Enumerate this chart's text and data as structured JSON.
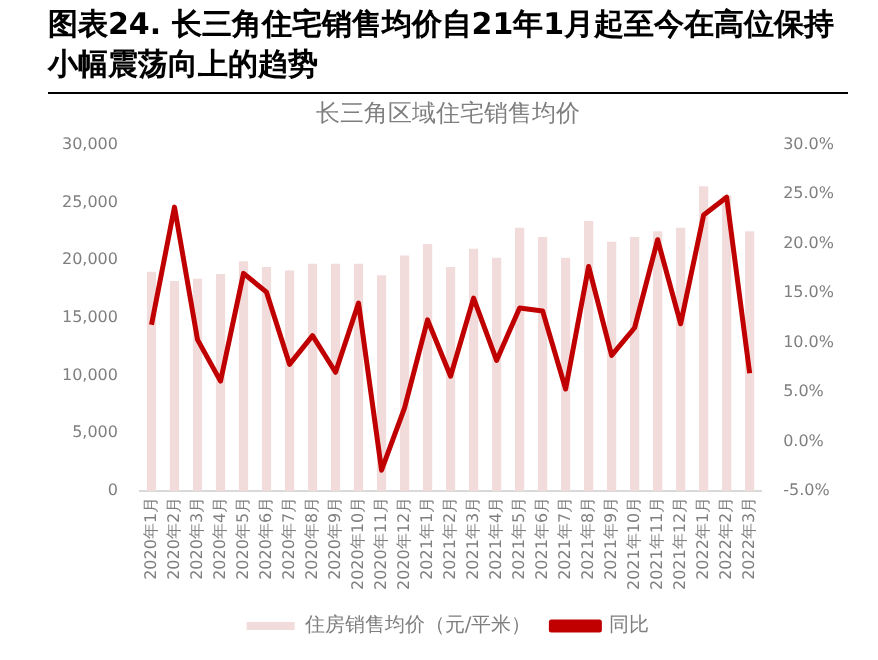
{
  "chart_data": {
    "type": "bar",
    "title": "长三角区域住宅销售均价",
    "subtitle": "图表24. 长三角住宅销售均价自21年1月起至今在高位保持小幅震荡向上的趋势",
    "categories": [
      "2020年1月",
      "2020年2月",
      "2020年3月",
      "2020年4月",
      "2020年5月",
      "2020年6月",
      "2020年7月",
      "2020年8月",
      "2020年9月",
      "2020年10月",
      "2020年11月",
      "2020年12月",
      "2021年1月",
      "2021年2月",
      "2021年3月",
      "2021年4月",
      "2021年5月",
      "2021年6月",
      "2021年7月",
      "2021年8月",
      "2021年9月",
      "2021年10月",
      "2021年11月",
      "2021年12月",
      "2022年1月",
      "2022年2月",
      "2022年3月"
    ],
    "series": [
      {
        "name": "住房销售均价（元/平米）",
        "color": "#f2dcdb",
        "values": [
          19000,
          18200,
          18400,
          18800,
          19900,
          19400,
          19100,
          19700,
          19700,
          19700,
          18700,
          20400,
          21400,
          19400,
          21000,
          20200,
          22800,
          22000,
          20200,
          23400,
          21600,
          22000,
          22500,
          22800,
          26400,
          25600,
          22500
        ]
      },
      {
        "name": "同比",
        "type": "line",
        "axis": "y2",
        "color": "#c00000",
        "values": [
          11.8,
          23.7,
          10.3,
          6.1,
          17.0,
          15.1,
          7.8,
          10.7,
          7.0,
          14.0,
          -2.9,
          3.4,
          12.3,
          6.6,
          14.5,
          8.2,
          13.5,
          13.2,
          5.3,
          17.7,
          8.7,
          11.5,
          20.4,
          11.9,
          22.9,
          24.7,
          6.9
        ]
      }
    ],
    "ylim": [
      0,
      30000
    ],
    "yticks": [
      {
        "value": 0,
        "label": "0"
      },
      {
        "value": 5000,
        "label": "5,000"
      },
      {
        "value": 10000,
        "label": "10,000"
      },
      {
        "value": 15000,
        "label": "15,000"
      },
      {
        "value": 20000,
        "label": "20,000"
      },
      {
        "value": 25000,
        "label": "25,000"
      },
      {
        "value": 30000,
        "label": "30,000"
      }
    ],
    "y2lim": [
      -5,
      30
    ],
    "y2ticks": [
      {
        "value": -5,
        "label": "-5.0%"
      },
      {
        "value": 0,
        "label": "0.0%"
      },
      {
        "value": 5,
        "label": "5.0%"
      },
      {
        "value": 10,
        "label": "10.0%"
      },
      {
        "value": 15,
        "label": "15.0%"
      },
      {
        "value": 20,
        "label": "20.0%"
      },
      {
        "value": 25,
        "label": "25.0%"
      },
      {
        "value": 30,
        "label": "30.0%"
      }
    ],
    "grid": false,
    "legend": "bottom",
    "marker": "none"
  }
}
